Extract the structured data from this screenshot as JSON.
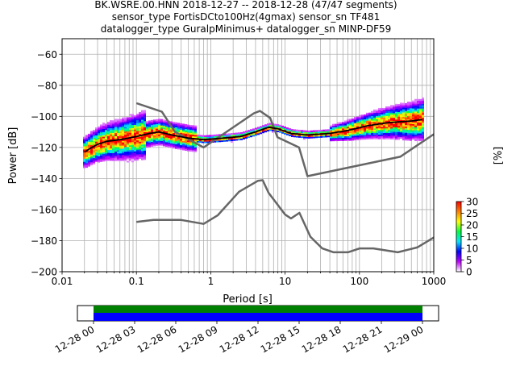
{
  "title_lines": [
    "BK.WSRE.00.HNN   2018-12-27 -- 2018-12-28  (47/47 segments)",
    "sensor_type FortisDCto100Hz(4gmax) sensor_sn TF481",
    "datalogger_type GuralpMinimus+ datalogger_sn MINP-DF59"
  ],
  "chart_data": {
    "type": "heatmap",
    "title": "BK.WSRE.00.HNN   2018-12-27 -- 2018-12-28  (47/47 segments)",
    "xlabel": "Period [s]",
    "ylabel": "Power [dB]",
    "xscale": "log",
    "xlim": [
      0.01,
      1000
    ],
    "ylim": [
      -200,
      -50
    ],
    "xticks": [
      "0.01",
      "0.1",
      "1",
      "10",
      "100",
      "1000"
    ],
    "yticks": [
      "−200",
      "−180",
      "−160",
      "−140",
      "−120",
      "−100",
      "−80",
      "−60"
    ],
    "grid": true,
    "colorbar": {
      "label": "[%]",
      "ticks": [
        "0",
        "5",
        "10",
        "15",
        "20",
        "25",
        "30"
      ],
      "range": [
        0,
        30
      ],
      "colors": [
        "#ffffff",
        "#bf00ff",
        "#0000ff",
        "#00e5ff",
        "#00ff40",
        "#ffff00",
        "#ff8000",
        "#ff0000"
      ]
    },
    "mean_curve": [
      [
        0.02,
        -123
      ],
      [
        0.025,
        -120
      ],
      [
        0.03,
        -118
      ],
      [
        0.04,
        -116
      ],
      [
        0.06,
        -115
      ],
      [
        0.1,
        -113
      ],
      [
        0.15,
        -111
      ],
      [
        0.2,
        -110
      ],
      [
        0.3,
        -112
      ],
      [
        0.5,
        -114
      ],
      [
        0.8,
        -115
      ],
      [
        1.5,
        -114
      ],
      [
        2.5,
        -113
      ],
      [
        4,
        -110
      ],
      [
        6,
        -107
      ],
      [
        8,
        -108
      ],
      [
        12,
        -111
      ],
      [
        20,
        -112
      ],
      [
        40,
        -111
      ],
      [
        70,
        -109
      ],
      [
        130,
        -106
      ],
      [
        250,
        -104
      ],
      [
        500,
        -103
      ],
      [
        700,
        -102
      ]
    ],
    "noise_model_high": [
      [
        0.1,
        -91.5
      ],
      [
        0.22,
        -97
      ],
      [
        0.33,
        -110
      ],
      [
        0.8,
        -120
      ],
      [
        3.8,
        -98
      ],
      [
        4.6,
        -96.5
      ],
      [
        6.3,
        -101
      ],
      [
        7.9,
        -113.5
      ],
      [
        15.4,
        -120
      ],
      [
        20,
        -138.5
      ],
      [
        354,
        -126
      ],
      [
        1000,
        -111.5
      ]
    ],
    "noise_model_low": [
      [
        0.1,
        -168
      ],
      [
        0.17,
        -166.7
      ],
      [
        0.4,
        -166.7
      ],
      [
        0.8,
        -169.2
      ],
      [
        1.24,
        -163.7
      ],
      [
        2.4,
        -148.5
      ],
      [
        4.3,
        -141.5
      ],
      [
        5.0,
        -141.1
      ],
      [
        6.0,
        -149.2
      ],
      [
        10,
        -163.2
      ],
      [
        12,
        -165.7
      ],
      [
        15.6,
        -162.1
      ],
      [
        21.9,
        -177.5
      ],
      [
        31.6,
        -185
      ],
      [
        45,
        -187.5
      ],
      [
        70,
        -187.5
      ],
      [
        101,
        -185
      ],
      [
        154,
        -185
      ],
      [
        328,
        -187.5
      ],
      [
        600,
        -184.4
      ],
      [
        1000,
        -178
      ]
    ],
    "coverage": {
      "ticks": [
        "12-28 00",
        "12-28 03",
        "12-28 06",
        "12-28 09",
        "12-28 12",
        "12-28 15",
        "12-28 18",
        "12-28 21",
        "12-29 00"
      ],
      "colors": [
        "#008000",
        "#0000ff"
      ]
    }
  }
}
